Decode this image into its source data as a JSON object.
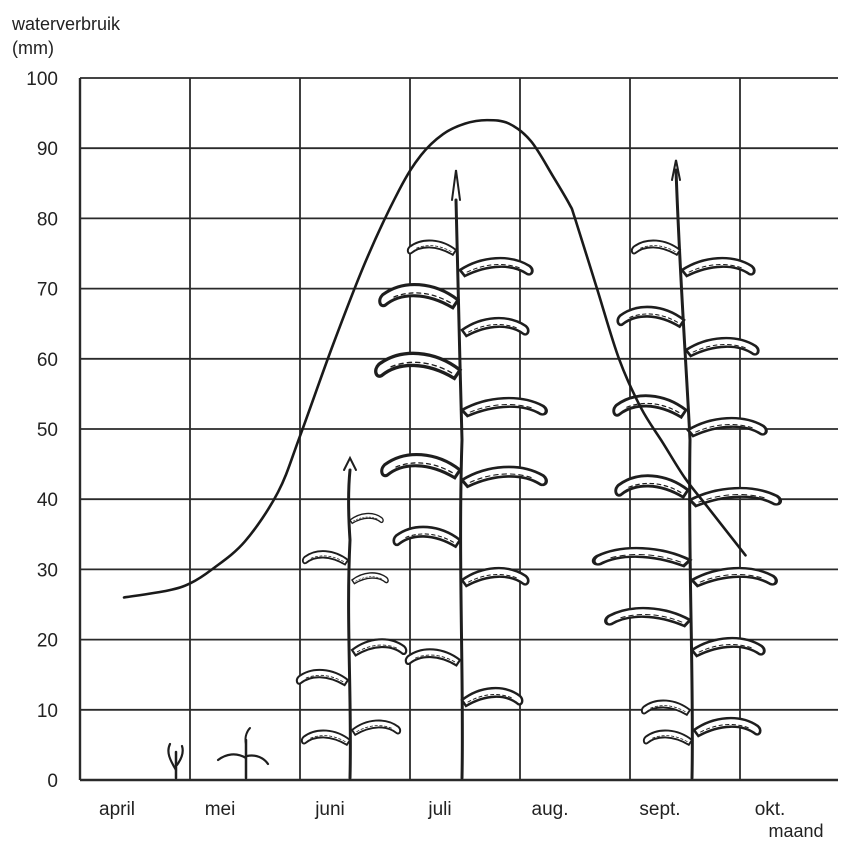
{
  "chart_data": {
    "type": "line",
    "title": "",
    "ylabel_line1": "waterverbruik",
    "ylabel_line2": "(mm)",
    "xlabel": "maand",
    "ylim": [
      0,
      100
    ],
    "yticks": [
      0,
      10,
      20,
      30,
      40,
      50,
      60,
      70,
      80,
      90,
      100
    ],
    "categories": [
      "april",
      "mei",
      "juni",
      "juli",
      "aug.",
      "sept.",
      "okt."
    ],
    "grid": true,
    "series": [
      {
        "x": [
          0.4,
          0.8,
          1.0,
          1.2,
          1.5,
          1.8,
          2.0,
          2.3,
          2.6,
          2.9,
          3.1,
          3.3,
          3.5,
          3.7,
          3.9,
          4.1,
          4.3,
          4.45,
          4.5,
          4.7,
          4.9,
          5.1,
          5.3,
          5.5,
          5.7,
          5.9,
          6.05
        ],
        "y": [
          26,
          27,
          28,
          30,
          34,
          41,
          49,
          62,
          74,
          84,
          89,
          92,
          93.5,
          94,
          93.5,
          91,
          86,
          82,
          80,
          70,
          60,
          53,
          48,
          43,
          39,
          35,
          32
        ]
      }
    ],
    "colors": {
      "curve": "#1a1a1a",
      "grid": "#2a2a2a",
      "plant": "#1e1e1e"
    },
    "illustration": "maize plants at successive growth stages (decorative)"
  }
}
